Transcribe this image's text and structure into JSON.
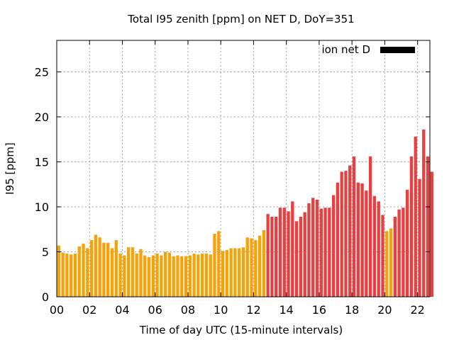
{
  "chart_data": {
    "type": "bar",
    "title": "Total I95 zenith [ppm] on NET D, DoY=351",
    "xlabel": "Time of day UTC (15-minute intervals)",
    "ylabel": "I95 [ppm]",
    "ylim": [
      0,
      28.5
    ],
    "xlim_hours": [
      0,
      22.75
    ],
    "bin_hours": 0.25,
    "yticks": [
      0,
      5,
      10,
      15,
      20,
      25
    ],
    "xticks": [
      "00",
      "02",
      "04",
      "06",
      "08",
      "10",
      "12",
      "14",
      "16",
      "18",
      "20",
      "22"
    ],
    "grid": true,
    "legend": {
      "label": "ion net D",
      "position": "top-right",
      "swatch_color": "#000000"
    },
    "colors": {
      "low": "#f5a30a",
      "high": "#e84040"
    },
    "values": [
      5.7,
      4.9,
      4.8,
      4.7,
      4.8,
      5.6,
      5.9,
      5.4,
      6.3,
      6.9,
      6.6,
      6.0,
      6.0,
      5.4,
      6.3,
      4.8,
      4.6,
      5.5,
      5.5,
      4.8,
      5.3,
      4.6,
      4.4,
      4.6,
      4.8,
      4.6,
      5.0,
      4.9,
      4.5,
      4.6,
      4.5,
      4.5,
      4.6,
      4.8,
      4.7,
      4.8,
      4.8,
      4.7,
      7.0,
      7.3,
      5.1,
      5.2,
      5.4,
      5.4,
      5.4,
      5.5,
      6.6,
      6.5,
      6.3,
      6.8,
      7.4,
      9.2,
      8.9,
      8.9,
      9.9,
      9.9,
      9.5,
      10.6,
      8.4,
      8.9,
      9.4,
      10.4,
      11.0,
      10.8,
      9.8,
      9.9,
      9.9,
      11.3,
      12.7,
      13.9,
      14.0,
      14.6,
      15.6,
      12.7,
      12.6,
      11.8,
      15.6,
      11.2,
      10.6,
      9.1,
      7.3,
      7.6,
      8.9,
      9.7,
      9.9,
      11.9,
      15.6,
      17.8,
      13.1,
      18.6,
      15.6,
      13.9
    ],
    "series_color_per_bar": [
      "low",
      "low",
      "low",
      "low",
      "low",
      "low",
      "low",
      "low",
      "low",
      "low",
      "low",
      "low",
      "low",
      "low",
      "low",
      "low",
      "low",
      "low",
      "low",
      "low",
      "low",
      "low",
      "low",
      "low",
      "low",
      "low",
      "low",
      "low",
      "low",
      "low",
      "low",
      "low",
      "low",
      "low",
      "low",
      "low",
      "low",
      "low",
      "low",
      "low",
      "low",
      "low",
      "low",
      "low",
      "low",
      "low",
      "low",
      "low",
      "low",
      "low",
      "low",
      "high",
      "high",
      "high",
      "high",
      "high",
      "high",
      "high",
      "high",
      "high",
      "high",
      "high",
      "high",
      "high",
      "high",
      "high",
      "high",
      "high",
      "high",
      "high",
      "high",
      "high",
      "high",
      "high",
      "high",
      "high",
      "high",
      "high",
      "high",
      "high",
      "low",
      "low",
      "high",
      "high",
      "high",
      "high",
      "high",
      "high",
      "high",
      "high",
      "high",
      "high"
    ]
  }
}
